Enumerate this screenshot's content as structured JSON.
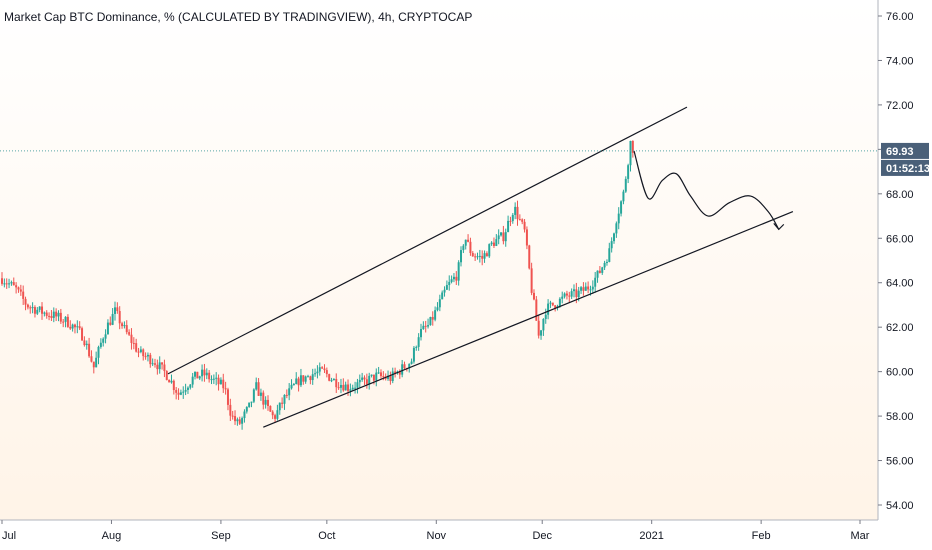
{
  "header": {
    "title": "Market Cap BTC Dominance, % (CALCULATED BY TRADINGVIEW), 4h, CRYPTOCAP"
  },
  "price_badge": {
    "value": "69.93",
    "countdown": "01:52:13",
    "color": "#4a6079"
  },
  "colors": {
    "up": "#26a69a",
    "down": "#ef5350",
    "lines": "#131722",
    "dotted": "#58a6a6",
    "background_bottom": "#fff3e6"
  },
  "chart_data": {
    "type": "candlestick",
    "title": "Market Cap BTC Dominance, % (CALCULATED BY TRADINGVIEW), 4h, CRYPTOCAP",
    "x_tick_labels": [
      "Jul",
      "Aug",
      "Sep",
      "Oct",
      "Nov",
      "Dec",
      "2021",
      "Feb",
      "Mar"
    ],
    "y_ticks": [
      "54.00",
      "56.00",
      "58.00",
      "60.00",
      "62.00",
      "64.00",
      "66.00",
      "68.00",
      "70.00",
      "72.00",
      "74.00",
      "76.00"
    ],
    "ylim": [
      53.5,
      76.5
    ],
    "xlim": [
      "2020-07-01",
      "2021-03-01"
    ],
    "grid": false,
    "last_value": 69.93,
    "price_path": [
      [
        "2020-07-01",
        64.2
      ],
      [
        "2020-07-05",
        63.7
      ],
      [
        "2020-07-08",
        63.0
      ],
      [
        "2020-07-12",
        62.7
      ],
      [
        "2020-07-16",
        62.5
      ],
      [
        "2020-07-20",
        62.2
      ],
      [
        "2020-07-24",
        61.6
      ],
      [
        "2020-07-27",
        60.2
      ],
      [
        "2020-07-30",
        61.8
      ],
      [
        "2020-08-02",
        62.7
      ],
      [
        "2020-08-05",
        61.8
      ],
      [
        "2020-08-09",
        60.8
      ],
      [
        "2020-08-13",
        60.5
      ],
      [
        "2020-08-17",
        59.8
      ],
      [
        "2020-08-20",
        59.0
      ],
      [
        "2020-08-24",
        59.7
      ],
      [
        "2020-08-27",
        59.9
      ],
      [
        "2020-08-30",
        59.6
      ],
      [
        "2020-09-02",
        59.3
      ],
      [
        "2020-09-04",
        58.0
      ],
      [
        "2020-09-06",
        57.6
      ],
      [
        "2020-09-09",
        58.4
      ],
      [
        "2020-09-11",
        59.3
      ],
      [
        "2020-09-14",
        58.4
      ],
      [
        "2020-09-16",
        57.9
      ],
      [
        "2020-09-19",
        58.8
      ],
      [
        "2020-09-23",
        59.6
      ],
      [
        "2020-09-27",
        59.9
      ],
      [
        "2020-09-30",
        60.0
      ],
      [
        "2020-10-03",
        59.6
      ],
      [
        "2020-10-07",
        59.3
      ],
      [
        "2020-10-11",
        59.5
      ],
      [
        "2020-10-15",
        59.8
      ],
      [
        "2020-10-19",
        59.7
      ],
      [
        "2020-10-22",
        60.1
      ],
      [
        "2020-10-25",
        60.5
      ],
      [
        "2020-10-27",
        61.7
      ],
      [
        "2020-10-30",
        62.1
      ],
      [
        "2020-11-02",
        63.1
      ],
      [
        "2020-11-04",
        63.8
      ],
      [
        "2020-11-07",
        64.4
      ],
      [
        "2020-11-09",
        66.1
      ],
      [
        "2020-11-11",
        65.3
      ],
      [
        "2020-11-14",
        65.1
      ],
      [
        "2020-11-17",
        65.8
      ],
      [
        "2020-11-20",
        66.1
      ],
      [
        "2020-11-23",
        67.4
      ],
      [
        "2020-11-26",
        66.3
      ],
      [
        "2020-11-28",
        63.7
      ],
      [
        "2020-11-30",
        61.6
      ],
      [
        "2020-12-02",
        62.8
      ],
      [
        "2020-12-05",
        63.1
      ],
      [
        "2020-12-08",
        63.4
      ],
      [
        "2020-12-11",
        63.5
      ],
      [
        "2020-12-14",
        63.8
      ],
      [
        "2020-12-17",
        64.4
      ],
      [
        "2020-12-20",
        65.4
      ],
      [
        "2020-12-22",
        66.9
      ],
      [
        "2020-12-24",
        68.0
      ],
      [
        "2020-12-26",
        70.3
      ],
      [
        "2020-12-27",
        69.93
      ]
    ],
    "trend_lines": [
      {
        "name": "upper-channel-line",
        "from": [
          "2020-08-17",
          59.9
        ],
        "to": [
          "2021-01-11",
          71.9
        ]
      },
      {
        "name": "lower-channel-line",
        "from": [
          "2020-09-13",
          57.5
        ],
        "to": [
          "2021-02-10",
          67.2
        ]
      }
    ],
    "projection_path": [
      [
        "2020-12-27",
        69.93
      ],
      [
        "2020-12-31",
        67.8
      ],
      [
        "2021-01-04",
        68.6
      ],
      [
        "2021-01-08",
        68.9
      ],
      [
        "2021-01-12",
        67.9
      ],
      [
        "2021-01-17",
        67.0
      ],
      [
        "2021-01-23",
        67.6
      ],
      [
        "2021-01-29",
        67.9
      ],
      [
        "2021-02-03",
        67.2
      ],
      [
        "2021-02-06",
        66.4
      ]
    ]
  }
}
